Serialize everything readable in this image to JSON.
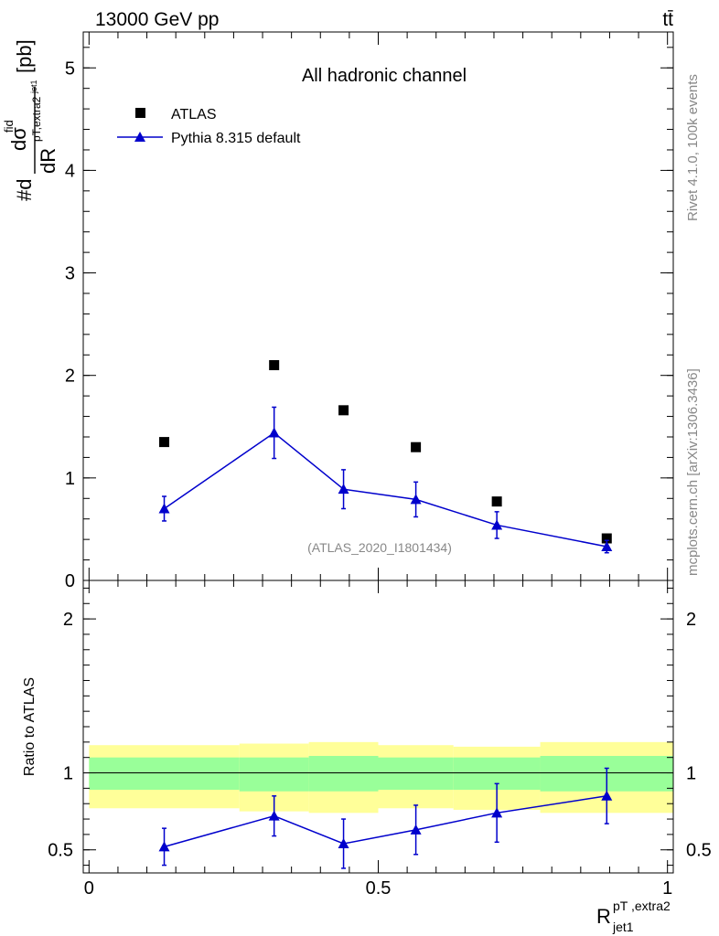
{
  "header": {
    "energy_label": "13000 GeV pp",
    "process_label": "tt̄"
  },
  "side_labels": {
    "rivet": "Rivet 4.1.0,  100k events",
    "mcplots": "mcplots.cern.ch [arXiv:1306.3436]"
  },
  "colors": {
    "data": "#000000",
    "mc": "#0000cc",
    "band_outer": "#ffff99",
    "band_inner": "#99ff99",
    "watermark": "#888888"
  },
  "chart_data": [
    {
      "type": "scatter",
      "panel": "main",
      "title": "All hadronic channel",
      "watermark": "(ATLAS_2020_I1801434)",
      "ylabel": "#d dσ^fid / dR^pT,extra2_jet1 [pb]",
      "ylabel_parts": {
        "prefix": "#d",
        "numerator": "dσ",
        "numerator_sup": "fid",
        "denominator": "dR",
        "denominator_sub": "pT,extra2",
        "denominator_subsub": "jet1",
        "unit": "[pb]"
      },
      "ylim": [
        0,
        5.35
      ],
      "y_ticks": [
        0,
        1,
        2,
        3,
        4,
        5
      ],
      "y_tick_labels": [
        "0",
        "1",
        "2",
        "3",
        "4",
        "5"
      ],
      "xlim": [
        -0.01,
        1.01
      ],
      "legend_position": "top-left",
      "series": [
        {
          "name": "ATLAS",
          "marker": "square",
          "x": [
            0.13,
            0.32,
            0.44,
            0.565,
            0.705,
            0.895
          ],
          "y": [
            1.35,
            2.1,
            1.66,
            1.3,
            0.77,
            0.41
          ]
        },
        {
          "name": "Pythia 8.315 default",
          "marker": "triangle",
          "line": true,
          "x": [
            0.13,
            0.32,
            0.44,
            0.565,
            0.705,
            0.895
          ],
          "y": [
            0.7,
            1.44,
            0.89,
            0.79,
            0.54,
            0.33
          ],
          "yerr": [
            0.12,
            0.25,
            0.19,
            0.17,
            0.13,
            0.06
          ]
        }
      ]
    },
    {
      "type": "scatter",
      "panel": "ratio",
      "ylabel": "Ratio to ATLAS",
      "xlabel": "R^pT,extra2_jet1",
      "xlabel_parts": {
        "base": "R",
        "sup": "pT ,extra2",
        "sub": "jet1"
      },
      "ylim": [
        0.35,
        2.25
      ],
      "y_ticks": [
        0.5,
        1,
        2
      ],
      "y_tick_labels": [
        "0.5",
        "1",
        "2"
      ],
      "xlim": [
        -0.01,
        1.01
      ],
      "x_ticks": [
        0,
        0.5,
        1
      ],
      "x_tick_labels": [
        "0",
        "0.5",
        "1"
      ],
      "bands": [
        {
          "x0": 0.0,
          "x1": 0.26,
          "outer": [
            0.77,
            1.18
          ],
          "inner": [
            0.89,
            1.1
          ]
        },
        {
          "x0": 0.26,
          "x1": 0.38,
          "outer": [
            0.75,
            1.19
          ],
          "inner": [
            0.88,
            1.1
          ]
        },
        {
          "x0": 0.38,
          "x1": 0.5,
          "outer": [
            0.74,
            1.2
          ],
          "inner": [
            0.88,
            1.11
          ]
        },
        {
          "x0": 0.5,
          "x1": 0.63,
          "outer": [
            0.77,
            1.18
          ],
          "inner": [
            0.89,
            1.1
          ]
        },
        {
          "x0": 0.63,
          "x1": 0.78,
          "outer": [
            0.76,
            1.17
          ],
          "inner": [
            0.89,
            1.1
          ]
        },
        {
          "x0": 0.78,
          "x1": 1.01,
          "outer": [
            0.74,
            1.2
          ],
          "inner": [
            0.88,
            1.11
          ]
        }
      ],
      "series": [
        {
          "name": "Pythia 8.315 default",
          "marker": "triangle",
          "line": true,
          "x": [
            0.13,
            0.32,
            0.44,
            0.565,
            0.705,
            0.895
          ],
          "y": [
            0.52,
            0.72,
            0.54,
            0.63,
            0.74,
            0.85
          ],
          "yerr": [
            0.12,
            0.13,
            0.16,
            0.16,
            0.19,
            0.18
          ]
        }
      ]
    }
  ]
}
